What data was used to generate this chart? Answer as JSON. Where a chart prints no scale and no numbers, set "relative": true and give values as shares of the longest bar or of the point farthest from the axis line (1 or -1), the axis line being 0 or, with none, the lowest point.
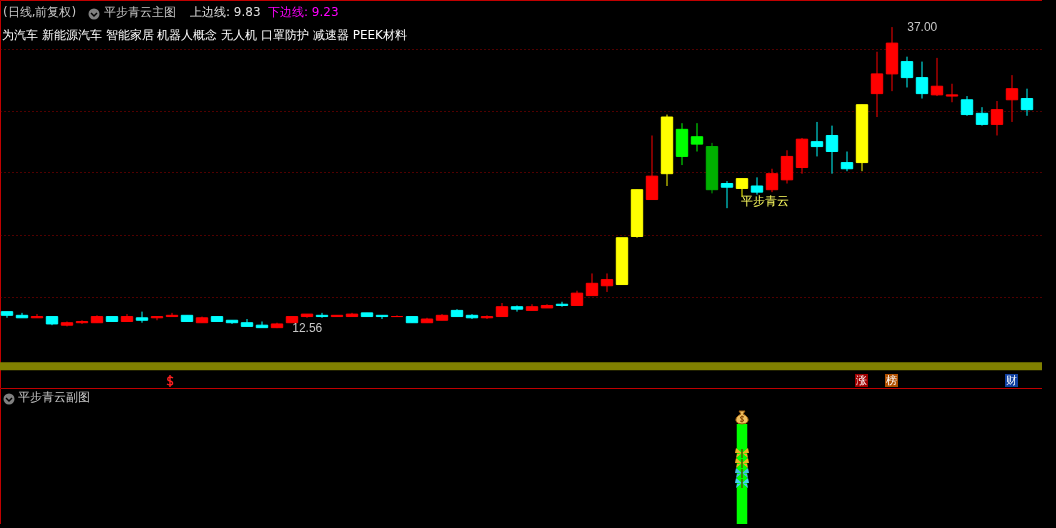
{
  "chart_data": [
    {
      "type": "candlestick",
      "title": "(日线,前复权)",
      "annotations": [
        "平步青云主图",
        "上边线: 9.83",
        "下边线: 9.23",
        "为汽车 新能源汽车 智能家居 机器人概念 无人机 口罩防护 减速器 PEEK材料",
        "平步青云",
        "12.56",
        "37.00",
        "涨",
        "榜",
        "财"
      ],
      "categories": [
        null,
        null,
        null,
        null,
        null,
        null,
        null,
        null,
        null,
        null,
        null,
        null,
        null,
        null,
        null,
        null,
        null,
        null,
        null,
        null,
        null,
        null,
        null,
        null,
        null,
        null,
        null,
        null,
        null,
        null,
        null,
        null,
        null,
        null,
        null,
        null,
        null,
        null,
        null,
        null,
        null,
        null,
        null,
        null,
        null,
        null,
        null,
        null,
        null,
        null,
        null,
        null,
        null,
        null,
        null,
        null,
        null,
        null,
        null,
        null,
        null,
        null,
        null,
        null,
        null,
        null,
        null,
        null,
        null
      ],
      "ohlc": [
        [
          13.9,
          13.9,
          13.4,
          13.6
        ],
        [
          13.6,
          13.8,
          13.4,
          13.4
        ],
        [
          13.4,
          13.7,
          13.4,
          13.5
        ],
        [
          13.5,
          13.5,
          12.8,
          12.9
        ],
        [
          12.8,
          13.1,
          12.7,
          13.0
        ],
        [
          13.0,
          13.2,
          12.9,
          13.1
        ],
        [
          13.0,
          13.6,
          13.0,
          13.5
        ],
        [
          13.5,
          13.5,
          13.1,
          13.1
        ],
        [
          13.1,
          13.7,
          13.1,
          13.5
        ],
        [
          13.4,
          13.9,
          13.0,
          13.2
        ],
        [
          13.4,
          13.5,
          13.2,
          13.5
        ],
        [
          13.5,
          13.8,
          13.5,
          13.6
        ],
        [
          13.6,
          13.6,
          13.1,
          13.1
        ],
        [
          13.0,
          13.5,
          13.0,
          13.4
        ],
        [
          13.5,
          13.5,
          13.1,
          13.1
        ],
        [
          13.2,
          13.2,
          12.9,
          13.0
        ],
        [
          13.0,
          13.3,
          12.7,
          12.7
        ],
        [
          12.8,
          13.1,
          12.6,
          12.6
        ],
        [
          12.6,
          13.0,
          12.56,
          12.9
        ],
        [
          13.0,
          13.5,
          13.0,
          13.5
        ],
        [
          13.5,
          13.7,
          13.4,
          13.7
        ],
        [
          13.6,
          13.8,
          13.4,
          13.5
        ],
        [
          13.5,
          13.6,
          13.5,
          13.6
        ],
        [
          13.5,
          13.8,
          13.5,
          13.7
        ],
        [
          13.8,
          13.8,
          13.5,
          13.5
        ],
        [
          13.6,
          13.6,
          13.3,
          13.5
        ],
        [
          13.5,
          13.6,
          13.5,
          13.5
        ],
        [
          13.5,
          13.5,
          13.0,
          13.0
        ],
        [
          13.0,
          13.4,
          13.0,
          13.3
        ],
        [
          13.2,
          13.7,
          13.2,
          13.6
        ],
        [
          14.0,
          14.1,
          13.5,
          13.5
        ],
        [
          13.6,
          13.7,
          13.3,
          13.4
        ],
        [
          13.4,
          13.6,
          13.3,
          13.5
        ],
        [
          13.5,
          14.6,
          13.5,
          14.3
        ],
        [
          14.3,
          14.4,
          13.9,
          14.1
        ],
        [
          14.0,
          14.5,
          14.0,
          14.3
        ],
        [
          14.2,
          14.5,
          14.2,
          14.4
        ],
        [
          14.5,
          14.7,
          14.3,
          14.4
        ],
        [
          14.4,
          15.6,
          14.4,
          15.4
        ],
        [
          15.2,
          17.0,
          15.2,
          16.2
        ],
        [
          16.0,
          17.0,
          15.5,
          16.5
        ],
        [
          16.1,
          19.9,
          16.1,
          19.9
        ],
        [
          20.0,
          23.8,
          19.9,
          23.8
        ],
        [
          23.0,
          28.2,
          23.0,
          24.9
        ],
        [
          25.1,
          29.9,
          24.1,
          29.7
        ],
        [
          28.7,
          29.2,
          25.8,
          26.5
        ],
        [
          28.1,
          29.2,
          26.9,
          27.5
        ],
        [
          27.3,
          27.6,
          23.5,
          23.8
        ],
        [
          24.3,
          24.5,
          22.3,
          24.0
        ],
        [
          23.9,
          24.7,
          23.2,
          24.7
        ],
        [
          24.1,
          24.8,
          23.4,
          23.6
        ],
        [
          23.8,
          25.5,
          23.6,
          25.1
        ],
        [
          24.6,
          27.0,
          24.3,
          26.5
        ],
        [
          25.6,
          28.0,
          25.1,
          27.9
        ],
        [
          27.7,
          29.3,
          26.5,
          27.3
        ],
        [
          28.2,
          29.0,
          25.1,
          26.9
        ],
        [
          26.0,
          26.9,
          25.3,
          25.5
        ],
        [
          26.0,
          30.7,
          25.3,
          30.7
        ],
        [
          31.6,
          35.0,
          29.7,
          33.2
        ],
        [
          33.2,
          37.0,
          31.8,
          35.7
        ],
        [
          34.2,
          34.6,
          32.1,
          32.9
        ],
        [
          32.9,
          34.2,
          31.2,
          31.6
        ],
        [
          31.5,
          34.5,
          31.4,
          32.2
        ],
        [
          31.4,
          32.4,
          30.9,
          31.5
        ],
        [
          31.1,
          31.4,
          29.8,
          29.9
        ],
        [
          30.0,
          30.5,
          29.0,
          29.1
        ],
        [
          29.1,
          31.0,
          28.2,
          30.3
        ],
        [
          31.1,
          33.1,
          29.3,
          32.0
        ],
        [
          31.2,
          32.0,
          29.8,
          30.3
        ]
      ],
      "colors": [
        "#00ffff",
        "#00ffff",
        "#ff0000",
        "#00ffff",
        "#ff0000",
        "#ff0000",
        "#ff0000",
        "#00ffff",
        "#ff0000",
        "#00ffff",
        "#ff0000",
        "#ff0000",
        "#00ffff",
        "#ff0000",
        "#00ffff",
        "#00ffff",
        "#00ffff",
        "#00ffff",
        "#ff0000",
        "#ff0000",
        "#ff0000",
        "#00ffff",
        "#ff0000",
        "#ff0000",
        "#00ffff",
        "#00ffff",
        "#ff0000",
        "#00ffff",
        "#ff0000",
        "#ff0000",
        "#00ffff",
        "#00ffff",
        "#ff0000",
        "#ff0000",
        "#00ffff",
        "#ff0000",
        "#ff0000",
        "#00ffff",
        "#ff0000",
        "#ff0000",
        "#ff0000",
        "#ffff00",
        "#ffff00",
        "#ff0000",
        "#ffff00",
        "#00ff00",
        "#00ff00",
        "#00b000",
        "#00ffff",
        "#ffff00",
        "#00ffff",
        "#ff0000",
        "#ff0000",
        "#ff0000",
        "#00ffff",
        "#00ffff",
        "#00ffff",
        "#ffff00",
        "#ff0000",
        "#ff0000",
        "#00ffff",
        "#00ffff",
        "#ff0000",
        "#ff0000",
        "#00ffff",
        "#00ffff",
        "#ff0000",
        "#ff0000",
        "#00ffff"
      ],
      "ylim": [
        7.7,
        39.2
      ],
      "yticks": [
        {
          "value": 15.1,
          "label": null
        },
        {
          "value": 20.1,
          "label": null
        },
        {
          "value": 25.2,
          "label": null
        },
        {
          "value": 30.2,
          "label": null
        },
        {
          "value": 35.2,
          "label": null
        }
      ],
      "grid": true,
      "bands": [
        {
          "axis": "y",
          "from": 9.15,
          "to": 9.8,
          "color": "#808000"
        }
      ]
    },
    {
      "type": "bar",
      "title": "平步青云副图",
      "relative": true,
      "categories": [
        null,
        null,
        null,
        null,
        null,
        null,
        null,
        null,
        null,
        null,
        null,
        null,
        null,
        null,
        null,
        null,
        null,
        null,
        null,
        null,
        null,
        null,
        null,
        null,
        null,
        null,
        null,
        null,
        null,
        null,
        null,
        null,
        null,
        null,
        null,
        null,
        null,
        null,
        null,
        null,
        null,
        null,
        null,
        null,
        null,
        null,
        null,
        null,
        null,
        null,
        null,
        null,
        null,
        null,
        null,
        null,
        null,
        null,
        null,
        null,
        null,
        null,
        null,
        null,
        null,
        null,
        null,
        null,
        null
      ],
      "values": [
        null,
        null,
        null,
        null,
        null,
        null,
        null,
        null,
        null,
        null,
        null,
        null,
        null,
        null,
        null,
        null,
        null,
        null,
        null,
        null,
        null,
        null,
        null,
        null,
        null,
        null,
        null,
        null,
        null,
        null,
        null,
        null,
        null,
        null,
        null,
        null,
        null,
        null,
        null,
        null,
        null,
        null,
        null,
        null,
        null,
        null,
        null,
        null,
        null,
        1,
        null,
        null,
        null,
        null,
        null,
        null,
        null,
        null,
        null,
        null,
        null,
        null,
        null,
        null,
        null,
        null,
        null,
        null,
        null
      ],
      "color": "#00ff00"
    }
  ]
}
